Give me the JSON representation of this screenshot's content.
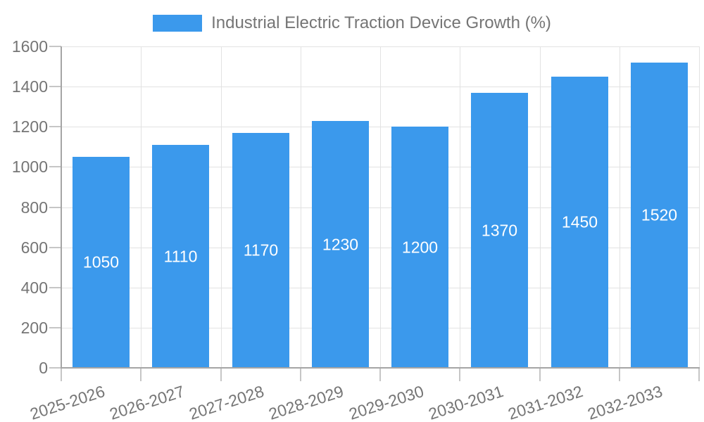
{
  "legend": {
    "label": "Industrial Electric Traction Device Growth (%)"
  },
  "chart_data": {
    "type": "bar",
    "title": "Industrial Electric Traction Device Growth (%)",
    "categories": [
      "2025-2026",
      "2026-2027",
      "2027-2028",
      "2028-2029",
      "2029-2030",
      "2030-2031",
      "2031-2032",
      "2032-2033"
    ],
    "values": [
      1050,
      1110,
      1170,
      1230,
      1200,
      1370,
      1450,
      1520
    ],
    "xlabel": "",
    "ylabel": "",
    "ylim": [
      0,
      1600
    ],
    "yticks": [
      0,
      200,
      400,
      600,
      800,
      1000,
      1200,
      1400,
      1600
    ],
    "grid": true,
    "legend_position": "top-center",
    "value_labels": "inside-center",
    "x_label_rotation_deg": -18
  },
  "colors": {
    "bar": "#3B99EC",
    "axis_text": "#757575",
    "legend_text": "#757575",
    "value_text": "#FFFFFF",
    "gridline": "#E2E2E2",
    "tick": "#C6C6C6",
    "axis_line": "#A5A5A5",
    "background": "#FFFFFF"
  }
}
